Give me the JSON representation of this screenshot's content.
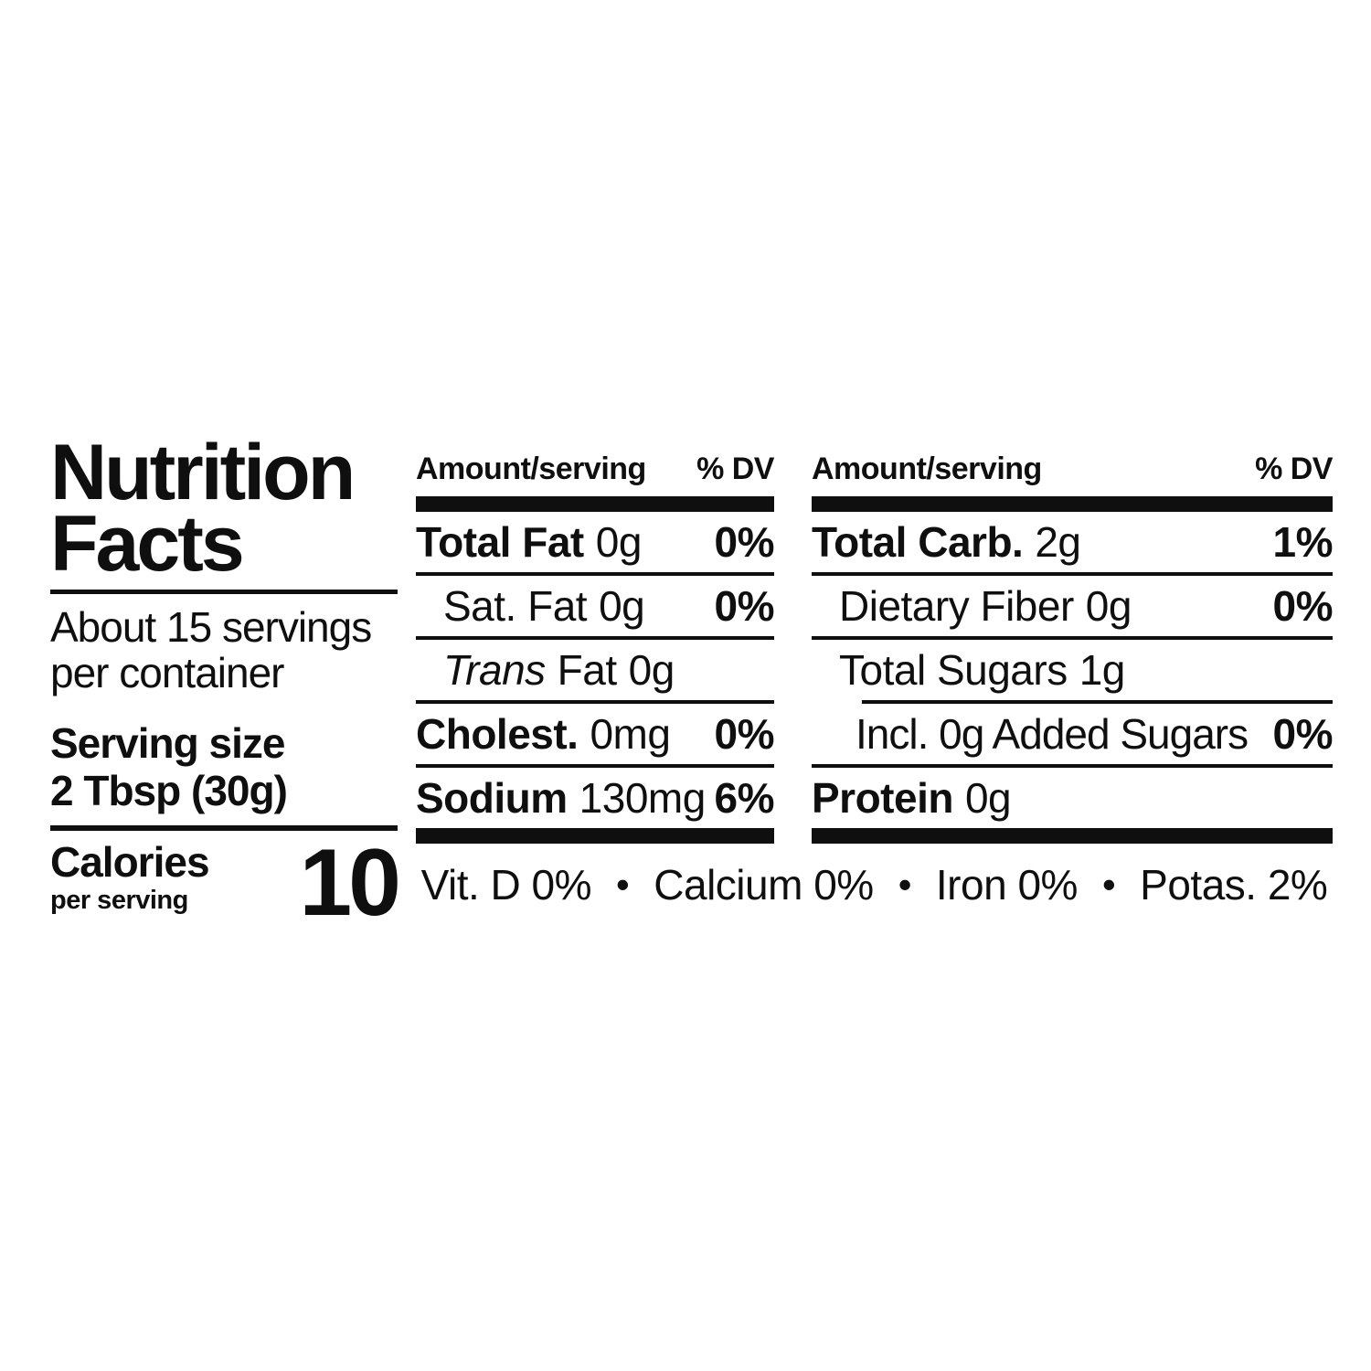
{
  "label": {
    "title_line1": "Nutrition",
    "title_line2": "Facts",
    "servings_line1": "About 15 servings",
    "servings_line2": "per container",
    "serving_size_label": "Serving size",
    "serving_size_value": "2 Tbsp (30g)",
    "calories_label": "Calories",
    "calories_sub": "per serving",
    "calories_value": "10",
    "cols": [
      {
        "header_amount": "Amount/serving",
        "header_dv": "% DV",
        "rows": [
          {
            "name_bold": "Total Fat",
            "amount": "0g",
            "dv": "0%"
          },
          {
            "name": "Sat. Fat",
            "amount": "0g",
            "dv": "0%"
          },
          {
            "name_italic": "Trans",
            "name": "Fat",
            "amount": "0g",
            "dv": ""
          },
          {
            "name_bold": "Cholest.",
            "amount": "0mg",
            "dv": "0%"
          },
          {
            "name_bold": "Sodium",
            "amount": "130mg",
            "dv": "6%"
          }
        ]
      },
      {
        "header_amount": "Amount/serving",
        "header_dv": "% DV",
        "rows": [
          {
            "name_bold": "Total Carb.",
            "amount": "2g",
            "dv": "1%"
          },
          {
            "name": "Dietary Fiber",
            "amount": "0g",
            "dv": "0%"
          },
          {
            "name": "Total Sugars",
            "amount": "1g",
            "dv": ""
          },
          {
            "name": "Incl. 0g Added Sugars",
            "amount": "",
            "dv": "0%"
          },
          {
            "name_bold": "Protein",
            "amount": "0g",
            "dv": ""
          }
        ]
      }
    ],
    "micro_separator": "•",
    "micros": [
      "Vit. D 0%",
      "Calcium 0%",
      "Iron 0%",
      "Potas. 2%"
    ],
    "colors": {
      "text": "#0f0f0f",
      "background": "#ffffff"
    }
  }
}
